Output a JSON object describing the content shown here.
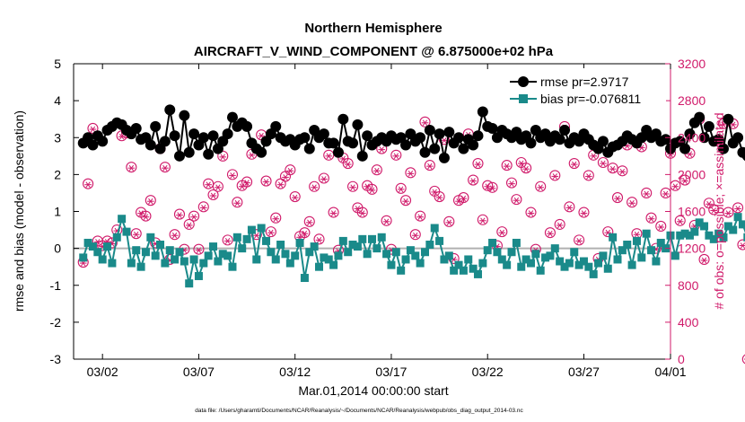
{
  "chart_data": {
    "type": "line",
    "title": "Northern Hemisphere",
    "subtitle": "AIRCRAFT_V_WIND_COMPONENT @ 6.875000e+02 hPa",
    "xlabel": "Mar.01,2014 00:00:00 start",
    "ylabel_left": "rmse and bias (model - observation)",
    "ylabel_right": "# of obs: o=possible; ×=assimilated",
    "footnote": "data file: /Users/gharamti/Documents/NCAR/Reanalysis/~/Documents/NCAR/Reanalysis/webpub/obs_diag_output_2014-03.nc",
    "xlim": [
      0.5,
      31.5
    ],
    "ylim_left": [
      -3,
      5
    ],
    "ylim_right": [
      0,
      3200
    ],
    "x_ticks": [
      2,
      7,
      12,
      17,
      22,
      27,
      32
    ],
    "x_tick_labels": [
      "03/02",
      "03/07",
      "03/12",
      "03/17",
      "03/22",
      "03/27",
      "04/01"
    ],
    "y_ticks_left": [
      -3,
      -2,
      -1,
      0,
      1,
      2,
      3,
      4,
      5
    ],
    "y_tick_labels_left": [
      "-3",
      "-2",
      "-1",
      "0",
      "1",
      "2",
      "3",
      "4",
      "5"
    ],
    "y_ticks_right": [
      0,
      400,
      800,
      1200,
      1600,
      2000,
      2400,
      2800,
      3200
    ],
    "y_tick_labels_right": [
      "0",
      "400",
      "800",
      "1200",
      "1600",
      "2000",
      "2400",
      "2800",
      "3200"
    ],
    "legend": [
      {
        "label": "rmse pr=2.9717",
        "color": "#000000",
        "marker": "circle"
      },
      {
        "label": "bias pr=-0.076811",
        "color": "#1a8a8a",
        "marker": "square"
      }
    ],
    "colors": {
      "rmse": "#000000",
      "bias": "#1a8a8a",
      "obs": "#d01a6a",
      "zero_line": "#b0b0b0"
    },
    "series": [
      {
        "name": "rmse",
        "x_start": 1.0,
        "x_step": 0.25,
        "values": [
          2.85,
          3.0,
          2.8,
          3.05,
          2.9,
          3.2,
          3.3,
          3.4,
          3.35,
          3.2,
          3.1,
          3.25,
          2.95,
          3.0,
          2.8,
          3.3,
          2.7,
          2.9,
          3.75,
          3.05,
          2.5,
          3.6,
          2.6,
          3.1,
          2.8,
          3.0,
          2.55,
          3.05,
          2.7,
          2.9,
          3.1,
          3.55,
          3.3,
          3.4,
          3.3,
          2.85,
          2.7,
          2.6,
          2.9,
          3.1,
          3.3,
          3.0,
          2.9,
          2.95,
          2.8,
          2.95,
          3.0,
          2.7,
          3.2,
          3.0,
          3.1,
          2.85,
          2.85,
          2.6,
          3.5,
          2.9,
          2.85,
          3.35,
          2.5,
          3.05,
          2.8,
          2.9,
          3.0,
          2.9,
          3.05,
          2.95,
          3.0,
          2.8,
          3.1,
          2.9,
          3.0,
          2.6,
          3.2,
          2.7,
          3.1,
          2.45,
          3.15,
          2.85,
          3.0,
          2.7,
          2.95,
          2.8,
          3.05,
          3.7,
          3.3,
          3.25,
          3.0,
          3.2,
          3.1,
          3.0,
          3.15,
          2.95,
          3.05,
          2.85,
          3.2,
          3.0,
          3.1,
          2.9,
          3.05,
          2.95,
          3.2,
          2.85,
          3.0,
          2.9,
          3.1,
          2.95,
          2.8,
          2.7,
          2.9,
          2.6,
          2.75,
          2.8,
          2.9,
          3.05,
          2.95,
          2.85,
          3.0,
          3.2,
          3.0,
          3.1,
          2.9,
          2.95,
          2.7,
          2.85,
          2.9,
          2.7,
          3.1,
          3.4,
          3.55,
          3.0,
          3.3,
          2.9,
          2.95,
          2.7,
          3.5,
          2.85,
          3.0,
          2.6,
          2.5
        ]
      },
      {
        "name": "bias",
        "x_start": 1.0,
        "x_step": 0.25,
        "values": [
          -0.25,
          0.15,
          0.05,
          -0.1,
          -0.3,
          0.05,
          -0.4,
          0.3,
          0.8,
          0.45,
          -0.4,
          -0.05,
          -0.5,
          -0.1,
          0.3,
          -0.2,
          0.1,
          -0.4,
          -0.05,
          -0.3,
          -0.1,
          -0.35,
          -0.95,
          -0.3,
          -0.75,
          -0.4,
          -0.2,
          0.05,
          -0.35,
          -0.15,
          -0.2,
          -0.5,
          0.3,
          0.0,
          0.25,
          0.5,
          -0.3,
          0.55,
          0.2,
          -0.1,
          -0.3,
          0.1,
          -0.15,
          -0.4,
          -0.2,
          0.15,
          -0.8,
          -0.1,
          0.05,
          -0.5,
          -0.25,
          -0.3,
          -0.45,
          -0.2,
          0.2,
          -0.1,
          0.1,
          0.05,
          0.25,
          -0.15,
          0.25,
          0.0,
          0.3,
          -0.15,
          -0.45,
          -0.1,
          -0.6,
          -0.3,
          -0.05,
          -0.2,
          -0.4,
          -0.1,
          0.1,
          0.55,
          0.2,
          -0.3,
          -0.2,
          -0.6,
          -0.45,
          -0.6,
          -0.3,
          -0.55,
          -0.7,
          -0.4,
          -0.05,
          0.15,
          -0.1,
          -0.3,
          -0.45,
          -0.1,
          0.15,
          -0.5,
          -0.3,
          -0.4,
          -0.15,
          -0.6,
          -0.25,
          -0.2,
          0.0,
          -0.35,
          -0.5,
          -0.4,
          -0.1,
          -0.45,
          -0.35,
          -0.5,
          -0.7,
          -0.4,
          -0.2,
          -0.55,
          0.3,
          -0.3,
          -0.05,
          0.1,
          -0.45,
          0.2,
          -0.25,
          0.4,
          -0.05,
          -0.35,
          0.15,
          0.0,
          0.35,
          -0.2,
          0.35,
          0.4,
          0.35,
          0.45,
          0.7,
          0.6,
          0.35,
          0.25,
          0.4,
          0.3,
          0.6,
          0.5,
          0.85,
          0.65,
          0.3,
          0.0
        ]
      },
      {
        "name": "obs_possible",
        "axis": "right",
        "x_start": 1.0,
        "x_step": 0.25,
        "values": [
          1050,
          1900,
          2500,
          1280,
          1230,
          1280,
          1260,
          1400,
          2420,
          2450,
          2080,
          1360,
          1590,
          1550,
          1720,
          1260,
          2280,
          2080,
          1080,
          1350,
          1570,
          1190,
          1460,
          1550,
          1190,
          1650,
          1900,
          1780,
          1870,
          2200,
          1290,
          2000,
          1700,
          1880,
          1920,
          2220,
          1350,
          2430,
          1930,
          1380,
          1530,
          1900,
          1980,
          2050,
          1760,
          1330,
          1370,
          1490,
          1870,
          1300,
          1960,
          2210,
          1590,
          1180,
          2180,
          2120,
          1870,
          1640,
          1590,
          1880,
          1840,
          2050,
          2280,
          1500,
          1190,
          2210,
          1850,
          1720,
          2020,
          1350,
          1550,
          2570,
          2100,
          1820,
          1760,
          2380,
          1490,
          1090,
          1720,
          1750,
          2440,
          1940,
          2120,
          1510,
          1880,
          1860,
          1230,
          1380,
          2100,
          1910,
          1730,
          2130,
          2070,
          1590,
          1190,
          1870,
          2420,
          1370,
          1990,
          1460,
          2520,
          1650,
          2120,
          1290,
          1590,
          1990,
          2210,
          1090,
          2130,
          1380,
          2070,
          1750,
          2040,
          2320,
          1700,
          1360,
          2300,
          1800,
          1530,
          1200,
          1440,
          1800,
          2230,
          1880,
          1500,
          1940,
          2230,
          1450,
          2600,
          1080,
          1690,
          1620,
          2360,
          2550,
          1590,
          2550,
          1640,
          1240,
          0
        ]
      },
      {
        "name": "obs_assimilated",
        "axis": "right",
        "x_start": 1.0,
        "x_step": 0.25,
        "values": [
          1040,
          1890,
          2490,
          1270,
          1220,
          1270,
          1250,
          1390,
          2410,
          2440,
          2070,
          1350,
          1580,
          1540,
          1710,
          1250,
          2270,
          2070,
          1070,
          1340,
          1560,
          1180,
          1450,
          1540,
          1180,
          1640,
          1890,
          1770,
          1860,
          2190,
          1280,
          1990,
          1690,
          1870,
          1910,
          2210,
          1340,
          2420,
          1920,
          1370,
          1520,
          1890,
          1970,
          2040,
          1750,
          1320,
          1360,
          1480,
          1860,
          1290,
          1950,
          2200,
          1580,
          1170,
          2170,
          2110,
          1860,
          1630,
          1580,
          1870,
          1830,
          2040,
          2270,
          1490,
          1180,
          2200,
          1840,
          1710,
          2010,
          1340,
          1540,
          2560,
          2090,
          1810,
          1750,
          2370,
          1480,
          1080,
          1710,
          1740,
          2430,
          1930,
          2110,
          1500,
          1870,
          1850,
          1220,
          1370,
          2090,
          1900,
          1720,
          2120,
          2060,
          1580,
          1180,
          1860,
          2410,
          1360,
          1980,
          1450,
          2510,
          1640,
          2110,
          1280,
          1580,
          1980,
          2200,
          1080,
          2120,
          1370,
          2060,
          1740,
          2030,
          2310,
          1690,
          1350,
          2290,
          1790,
          1520,
          1190,
          1430,
          1790,
          2220,
          1870,
          1490,
          1930,
          2220,
          1440,
          2590,
          1070,
          1680,
          1610,
          2350,
          2540,
          1580,
          2540,
          1630,
          1230,
          0
        ]
      }
    ]
  }
}
